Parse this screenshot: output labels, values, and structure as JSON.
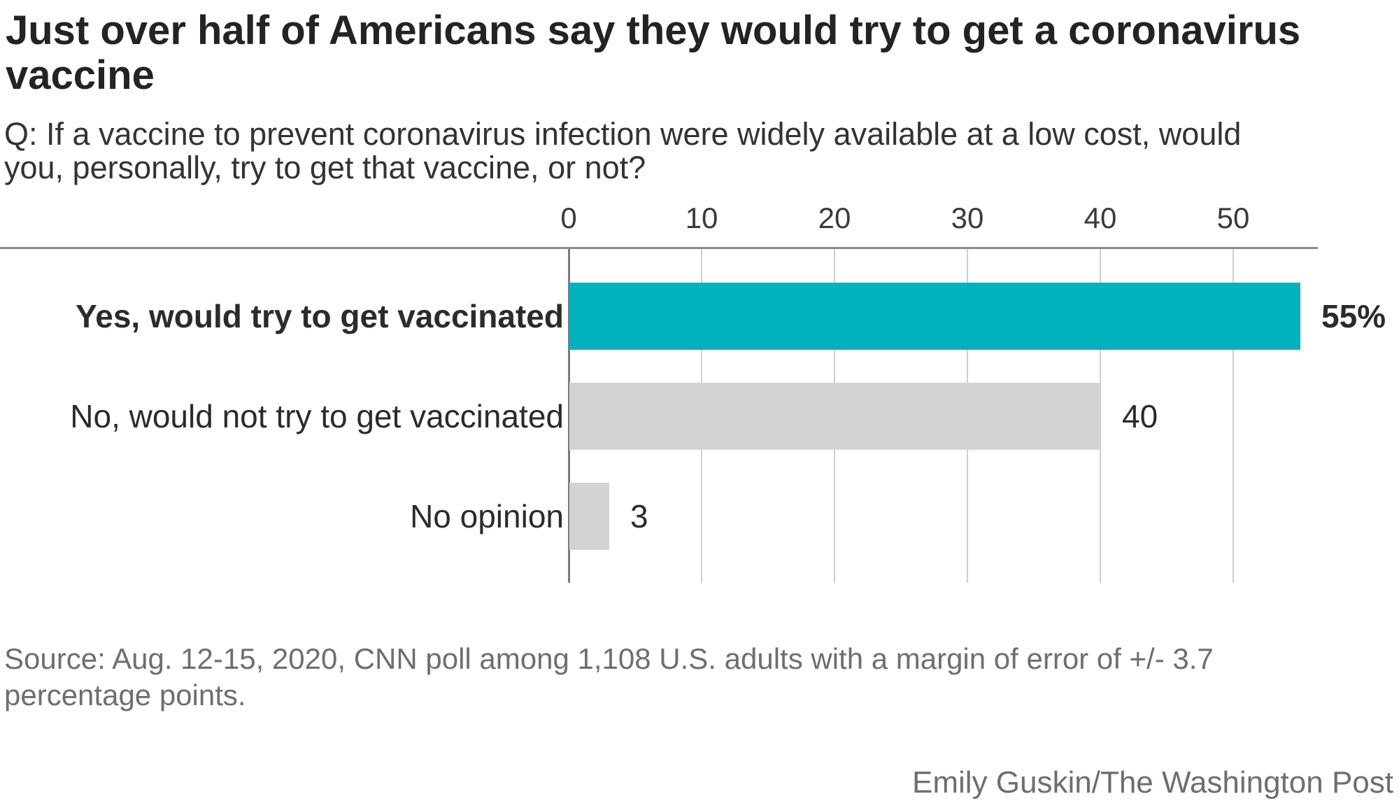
{
  "title_lines": [
    "Just over half of Americans say they would try to get a coronavirus",
    "vaccine"
  ],
  "question_lines": [
    "Q: If a vaccine to prevent coronavirus infection were widely available at a low cost, would",
    "you, personally, try to get that vaccine, or not?"
  ],
  "source_lines": [
    "Source: Aug. 12-15, 2020, CNN poll among 1,108 U.S. adults with a margin of error of +/- 3.7",
    "percentage points."
  ],
  "credit": "Emily Guskin/The Washington Post",
  "colors": {
    "accent_teal": "#00b2bc",
    "bar_gray": "#d3d4d2",
    "axis_dark": "#8a8a8a",
    "zero_line": "#7b7b7b",
    "grid_light": "#cfcfcf"
  },
  "chart_data": {
    "type": "bar",
    "orientation": "horizontal",
    "title": "Just over half of Americans say they would try to get a coronavirus vaccine",
    "subtitle": "Q: If a vaccine to prevent coronavirus infection were widely available at a low cost, would you, personally, try to get that vaccine, or not?",
    "categories": [
      "Yes, would try to get vaccinated",
      "No, would not try to get vaccinated",
      "No opinion"
    ],
    "values": [
      55,
      40,
      3
    ],
    "value_labels": [
      "55%",
      "40",
      "3"
    ],
    "bar_colors": [
      "teal",
      "gray",
      "gray"
    ],
    "emphasized_row": 0,
    "x_ticks": [
      0,
      10,
      20,
      30,
      40,
      50
    ],
    "xlim": [
      0,
      56
    ],
    "grid": true,
    "legend": false,
    "xlabel": "",
    "ylabel": ""
  }
}
